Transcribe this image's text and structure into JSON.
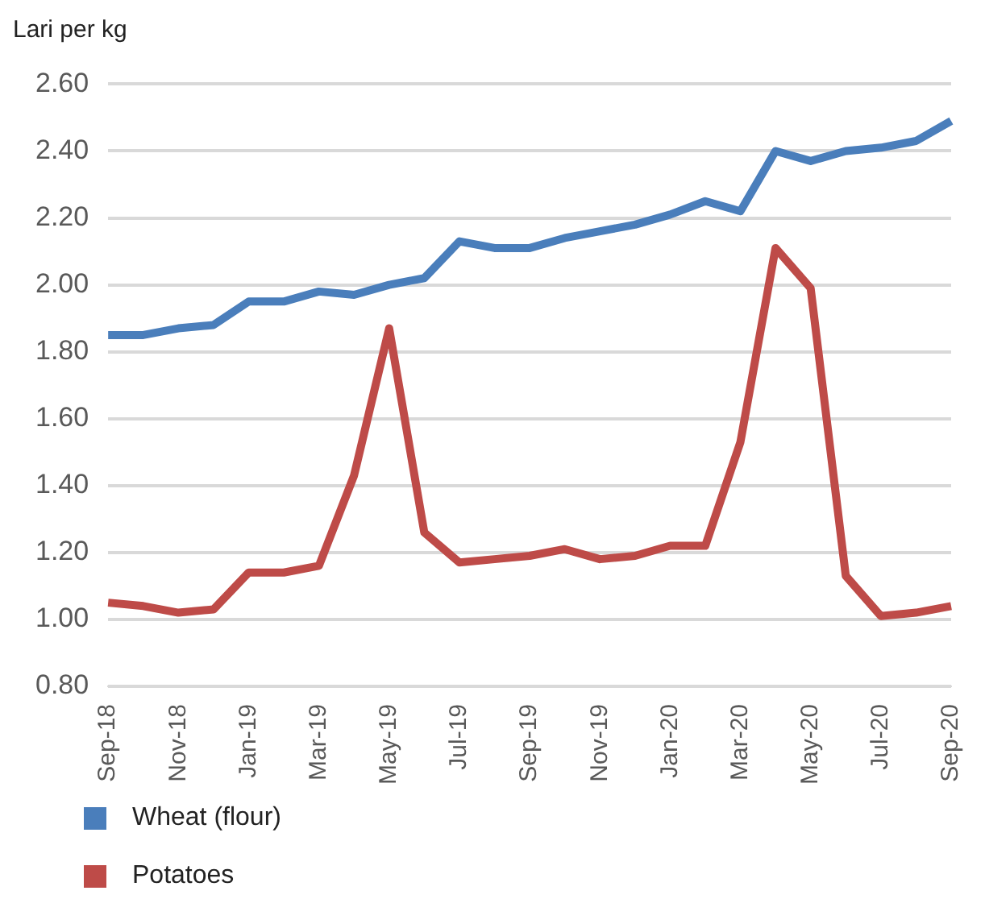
{
  "chart_data": {
    "type": "line",
    "ylabel": "Lari per kg",
    "categories": [
      "Sep-18",
      null,
      "Nov-18",
      null,
      "Jan-19",
      null,
      "Mar-19",
      null,
      "May-19",
      null,
      "Jul-19",
      null,
      "Sep-19",
      null,
      "Nov-19",
      null,
      "Jan-20",
      null,
      "Mar-20",
      null,
      "May-20",
      null,
      "Jul-20",
      null,
      "Sep-20"
    ],
    "series": [
      {
        "name": "Wheat (flour)",
        "color": "#4a7ebb",
        "values": [
          1.85,
          1.85,
          1.87,
          1.88,
          1.95,
          1.95,
          1.98,
          1.97,
          2.0,
          2.02,
          2.13,
          2.11,
          2.11,
          2.14,
          2.16,
          2.18,
          2.21,
          2.25,
          2.22,
          2.4,
          2.37,
          2.4,
          2.41,
          2.43,
          2.49
        ]
      },
      {
        "name": "Potatoes",
        "color": "#be4b48",
        "values": [
          1.05,
          1.04,
          1.02,
          1.03,
          1.14,
          1.14,
          1.16,
          1.43,
          1.87,
          1.26,
          1.17,
          1.18,
          1.19,
          1.21,
          1.18,
          1.19,
          1.22,
          1.22,
          1.53,
          2.11,
          1.99,
          1.13,
          1.01,
          1.02,
          1.04
        ]
      }
    ],
    "ylim": [
      0.8,
      2.6
    ],
    "yticks": [
      {
        "value": 0.8,
        "label": "0.80"
      },
      {
        "value": 1,
        "label": "1.00"
      },
      {
        "value": 1.2,
        "label": "1.20"
      },
      {
        "value": 1.4,
        "label": "1.40"
      },
      {
        "value": 1.6,
        "label": "1.60"
      },
      {
        "value": 1.8,
        "label": "1.80"
      },
      {
        "value": 2,
        "label": "2.00"
      },
      {
        "value": 2.2,
        "label": "2.20"
      },
      {
        "value": 2.4,
        "label": "2.40"
      },
      {
        "value": 2.6,
        "label": "2.60"
      }
    ],
    "grid": "y",
    "legend": "bottom left",
    "marker": "none",
    "line_style": "solid"
  }
}
